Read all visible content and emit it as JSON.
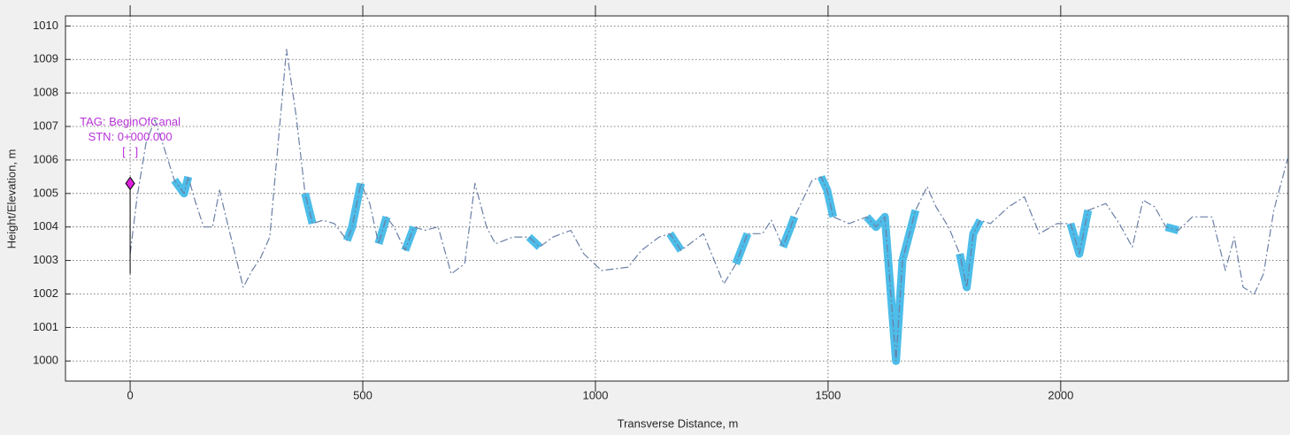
{
  "chart_data": {
    "type": "line",
    "xlabel": "Transverse Distance, m",
    "ylabel": "Height/Elevation, m",
    "xlim": [
      -139,
      2489
    ],
    "ylim": [
      999.4,
      1010.3
    ],
    "xticks": [
      0,
      500,
      1000,
      1500,
      2000
    ],
    "yticks": [
      1000,
      1001,
      1002,
      1003,
      1004,
      1005,
      1006,
      1007,
      1008,
      1009,
      1010
    ],
    "grid": true,
    "x": [
      0,
      15,
      34,
      53,
      72,
      95,
      116,
      125,
      139,
      158,
      177,
      192,
      211,
      243,
      262,
      281,
      300,
      336,
      357,
      376,
      392,
      414,
      439,
      466,
      477,
      496,
      515,
      534,
      551,
      567,
      591,
      610,
      633,
      662,
      690,
      719,
      741,
      766,
      785,
      823,
      857,
      880,
      909,
      947,
      975,
      1013,
      1070,
      1099,
      1137,
      1160,
      1184,
      1232,
      1276,
      1302,
      1327,
      1359,
      1378,
      1403,
      1428,
      1466,
      1485,
      1498,
      1511,
      1545,
      1583,
      1603,
      1622,
      1646,
      1660,
      1688,
      1713,
      1732,
      1759,
      1783,
      1798,
      1812,
      1827,
      1849,
      1888,
      1922,
      1954,
      1992,
      2021,
      2040,
      2059,
      2097,
      2126,
      2154,
      2177,
      2202,
      2226,
      2253,
      2283,
      2325,
      2354,
      2373,
      2392,
      2416,
      2436,
      2458,
      2489
    ],
    "series": [
      {
        "color": "#4dbde9",
        "width": 9,
        "style": "solid",
        "values": [
          null,
          null,
          null,
          null,
          null,
          1005.4,
          1005.0,
          1005.5,
          null,
          null,
          null,
          null,
          null,
          null,
          null,
          null,
          null,
          null,
          null,
          1005.0,
          1004.1,
          null,
          null,
          1003.6,
          1004.0,
          1005.3,
          null,
          1003.5,
          1004.3,
          null,
          1003.3,
          1004.0,
          null,
          null,
          null,
          null,
          null,
          null,
          null,
          null,
          1003.7,
          1003.4,
          null,
          null,
          null,
          null,
          null,
          null,
          null,
          1003.8,
          1003.3,
          null,
          null,
          1002.9,
          1003.8,
          null,
          null,
          1003.4,
          1004.3,
          null,
          1005.5,
          1005.1,
          1004.3,
          null,
          1004.3,
          1004.0,
          1004.3,
          1000.0,
          1003.0,
          1004.5,
          null,
          null,
          null,
          1003.2,
          1002.2,
          1003.8,
          1004.2,
          null,
          null,
          null,
          null,
          null,
          1004.1,
          1003.2,
          1004.5,
          null,
          null,
          null,
          null,
          null,
          1004.0,
          1003.9,
          null,
          null,
          null,
          null,
          null,
          null,
          null,
          null,
          null
        ]
      },
      {
        "color": "#6b7fa6",
        "width": 1.2,
        "style": "dashdot",
        "values": [
          1003.2,
          1004.9,
          1006.5,
          1007.2,
          1006.4,
          1005.4,
          1005.0,
          1005.5,
          1004.8,
          1004.0,
          1004.0,
          1005.1,
          1004.0,
          1002.2,
          1002.7,
          1003.1,
          1003.7,
          1009.3,
          1007.3,
          1005.0,
          1004.1,
          1004.2,
          1004.1,
          1003.6,
          1004.0,
          1005.3,
          1004.7,
          1003.5,
          1004.3,
          1004.0,
          1003.3,
          1004.0,
          1003.9,
          1004.0,
          1002.6,
          1002.9,
          1005.3,
          1004.0,
          1003.5,
          1003.7,
          1003.7,
          1003.4,
          1003.7,
          1003.9,
          1003.2,
          1002.7,
          1002.8,
          1003.3,
          1003.7,
          1003.8,
          1003.3,
          1003.8,
          1002.3,
          1002.9,
          1003.8,
          1003.8,
          1004.2,
          1003.4,
          1004.3,
          1005.4,
          1005.5,
          1005.1,
          1004.3,
          1004.1,
          1004.3,
          1004.0,
          1004.3,
          1000.0,
          1003.0,
          1004.5,
          1005.2,
          1004.6,
          1004.0,
          1003.2,
          1002.2,
          1003.8,
          1004.2,
          1004.1,
          1004.6,
          1004.9,
          1003.8,
          1004.1,
          1004.1,
          1003.2,
          1004.5,
          1004.7,
          1004.1,
          1003.4,
          1004.8,
          1004.6,
          1004.0,
          1003.9,
          1004.3,
          1004.3,
          1002.7,
          1003.7,
          1002.2,
          1002.0,
          1002.6,
          1004.5,
          1006.1
        ]
      }
    ],
    "marker": {
      "x": 0,
      "y": 1005.3,
      "base": 1002.6,
      "color": "#dd22dd",
      "label_color": "#b832d8",
      "labels": [
        "TAG: BeginOfCanal",
        "STN: 0+000.000",
        "[ : ]"
      ]
    }
  }
}
